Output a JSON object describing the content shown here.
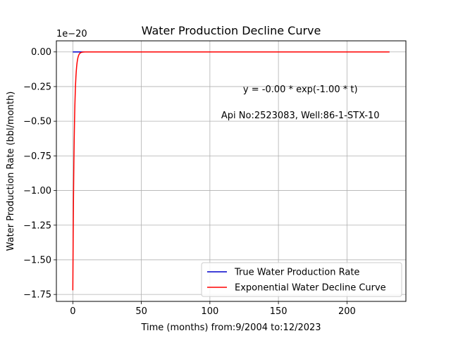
{
  "chart_data": {
    "type": "line",
    "title": "Water Production Decline Curve",
    "xlabel": "Time (months) from:9/2004 to:12/2023",
    "ylabel": "Water Production Rate (bbl/month)",
    "y_offset_label": "1e−20",
    "xlim": [
      -12,
      243
    ],
    "ylim": [
      -1.8,
      0.08
    ],
    "x_ticks": [
      0,
      50,
      100,
      150,
      200
    ],
    "x_tick_labels": [
      "0",
      "50",
      "100",
      "150",
      "200"
    ],
    "y_ticks": [
      0.0,
      -0.25,
      -0.5,
      -0.75,
      -1.0,
      -1.25,
      -1.5,
      -1.75
    ],
    "y_tick_labels": [
      "0.00",
      "−0.25",
      "−0.50",
      "−0.75",
      "−1.00",
      "−1.25",
      "−1.50",
      "−1.75"
    ],
    "grid": true,
    "legend_position": "bottom-right",
    "annotations": [
      {
        "text": "y = -0.00 * exp(-1.00 * t)",
        "x": 166,
        "y": -0.29
      },
      {
        "text": "Api No:2523083, Well:86-1-STX-10",
        "x": 166,
        "y": -0.48
      }
    ],
    "series": [
      {
        "name": "True Water Production Rate",
        "color": "#0000cc",
        "x": [
          0,
          231
        ],
        "y": [
          0,
          0
        ]
      },
      {
        "name": "Exponential Water Decline Curve",
        "color": "#ff0000",
        "model": {
          "amplitude": -1.72,
          "rate": 1.0,
          "x_start": 0,
          "x_end": 231
        }
      }
    ]
  }
}
